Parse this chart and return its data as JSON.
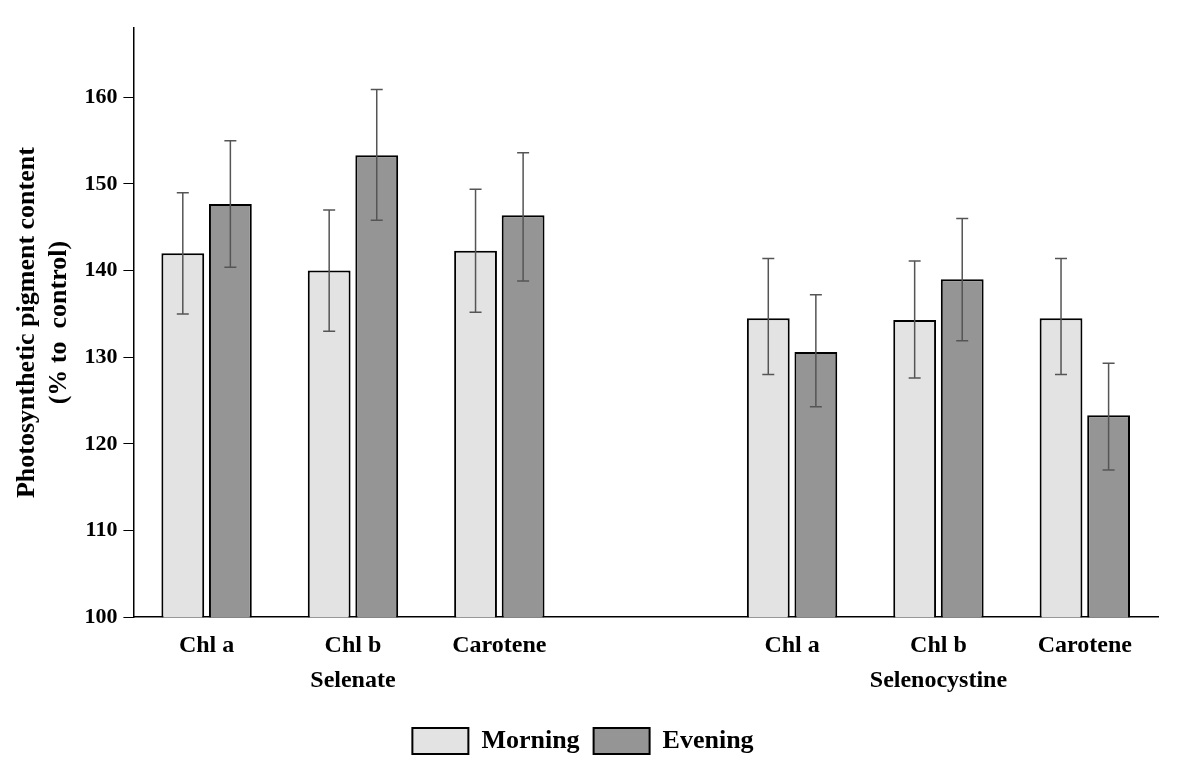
{
  "chart_data": {
    "type": "bar",
    "ylabel": "Photosynthetic pigment content\n(% to  control)",
    "categories": [
      "Chl a",
      "Chl b",
      "Carotene",
      null,
      "Chl a",
      "Chl b",
      "Carotene"
    ],
    "series": [
      {
        "name": "Morning",
        "color": "#e3e3e3",
        "values": [
          142,
          140,
          142.3,
          null,
          134.5,
          134.3,
          134.5
        ],
        "errors": [
          [
            135,
            149
          ],
          [
            133,
            147
          ],
          [
            135.2,
            149.4
          ],
          null,
          [
            128,
            141.4
          ],
          [
            127.6,
            141.1
          ],
          [
            128,
            141.4
          ]
        ]
      },
      {
        "name": "Evening",
        "color": "#959595",
        "values": [
          147.7,
          153.3,
          146.4,
          null,
          130.6,
          139,
          123.3
        ],
        "errors": [
          [
            140.4,
            155
          ],
          [
            145.8,
            160.9
          ],
          [
            138.8,
            153.6
          ],
          null,
          [
            124.3,
            137.2
          ],
          [
            131.9,
            146
          ],
          [
            117,
            129.3
          ]
        ]
      }
    ],
    "annotations": [
      "Selenate",
      "Selenocystine"
    ],
    "ylim": [
      100,
      168
    ],
    "yticks": [
      100,
      110,
      120,
      130,
      140,
      150,
      160
    ],
    "grid": false,
    "legend": "bottom"
  }
}
